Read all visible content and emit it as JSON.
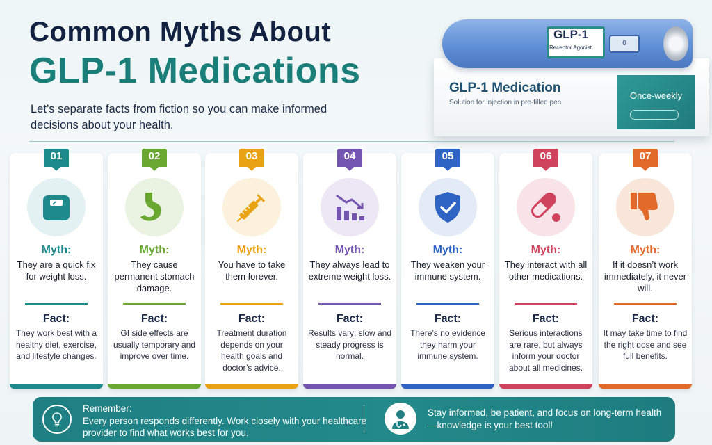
{
  "header": {
    "title_line1": "Common Myths About",
    "title_line2": "GLP-1 Medications",
    "subtitle": "Let’s separate facts from fiction so you can make informed decisions about your health."
  },
  "product": {
    "pen_label_title": "GLP-1",
    "pen_label_sub": "Receptor Agonist",
    "pen_window": "0",
    "box_title": "GLP-1 Medication",
    "box_sub": "Solution for injection in pre-filled pen",
    "box_side": "Once-weekly"
  },
  "cards": [
    {
      "num": "01",
      "color": "#1e8a8b",
      "tint": "#e4f1f2",
      "icon": "scale-icon",
      "myth_label": "Myth:",
      "myth": "They are a quick fix for weight loss.",
      "fact_label": "Fact:",
      "fact": "They work best with a healthy diet, exercise, and lifestyle changes."
    },
    {
      "num": "02",
      "color": "#6aa832",
      "tint": "#eaf3e2",
      "icon": "stomach-icon",
      "myth_label": "Myth:",
      "myth": "They cause permanent stomach damage.",
      "fact_label": "Fact:",
      "fact": "GI side effects are usually temporary and improve over time."
    },
    {
      "num": "03",
      "color": "#e8a214",
      "tint": "#fbf1dc",
      "icon": "syringe-icon",
      "myth_label": "Myth:",
      "myth": "You have to take them forever.",
      "fact_label": "Fact:",
      "fact": "Treatment duration depends on your health goals and doctor’s advice."
    },
    {
      "num": "04",
      "color": "#7456b0",
      "tint": "#ece7f4",
      "icon": "decline-chart-icon",
      "myth_label": "Myth:",
      "myth": "They always lead to extreme weight loss.",
      "fact_label": "Fact:",
      "fact": "Results vary; slow and steady progress is normal."
    },
    {
      "num": "05",
      "color": "#2f63c4",
      "tint": "#e3ebf7",
      "icon": "shield-check-icon",
      "myth_label": "Myth:",
      "myth": "They weaken your immune system.",
      "fact_label": "Fact:",
      "fact": "There’s no evidence they harm your immune system."
    },
    {
      "num": "06",
      "color": "#d0435e",
      "tint": "#f8e4e8",
      "icon": "pill-icon",
      "myth_label": "Myth:",
      "myth": "They interact with all other medications.",
      "fact_label": "Fact:",
      "fact": "Serious interactions are rare, but always inform your doctor about all medicines."
    },
    {
      "num": "07",
      "color": "#e26a2a",
      "tint": "#f9e6da",
      "icon": "thumbs-down-icon",
      "myth_label": "Myth:",
      "myth": "If it doesn’t work immediately, it never will.",
      "fact_label": "Fact:",
      "fact": "It may take time to find the right dose and see full benefits."
    }
  ],
  "footer": {
    "remember_label": "Remember:",
    "remember_text": "Every person responds differently. Work closely with your healthcare provider to find what works best for you.",
    "stay_text": "Stay informed, be patient, and focus on long-term health—knowledge is your best tool!"
  }
}
